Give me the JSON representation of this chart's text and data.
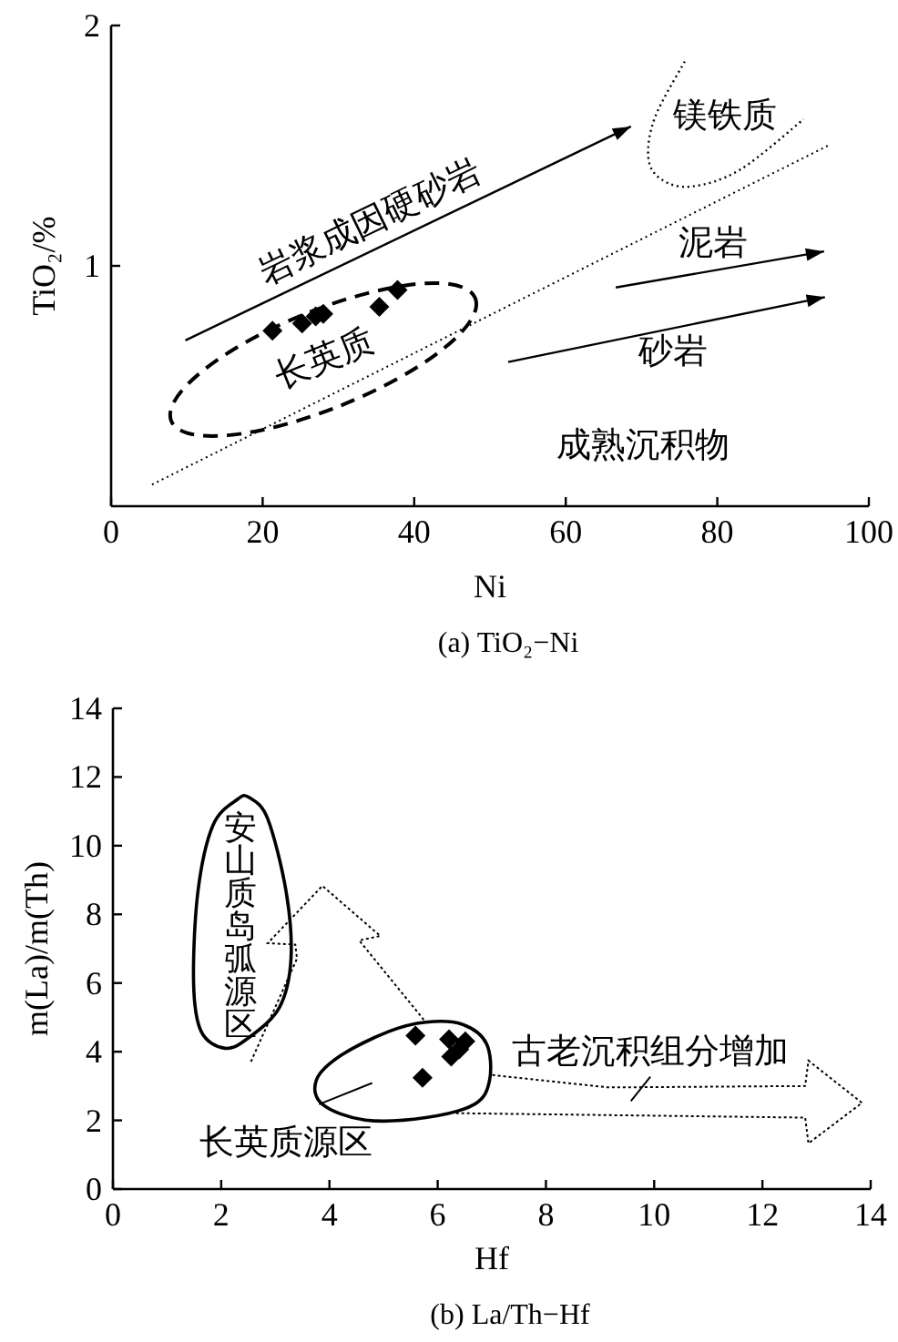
{
  "chart_data": [
    {
      "type": "scatter",
      "title": "(a) TiO₂−Ni",
      "xlabel": "Ni",
      "ylabel": "TiO₂/%",
      "series": [
        {
          "marker": "diamond",
          "color": "#000000",
          "x": [
            21.3,
            25.2,
            27.0,
            28.0,
            35.4,
            37.8
          ],
          "values": [
            0.73,
            0.76,
            0.79,
            0.8,
            0.83,
            0.9
          ]
        },
        {
          "type": "line",
          "color": "#000000",
          "line_style": "dotted",
          "x": [
            5.4,
            94.6
          ],
          "values": [
            0.09,
            1.5
          ]
        }
      ],
      "xlim": [
        0,
        100
      ],
      "ylim": [
        0,
        2
      ],
      "xticks": [
        0,
        20,
        40,
        60,
        80,
        100
      ],
      "yticks": [
        1,
        2
      ],
      "annotations": [
        "岩浆成因硬砂岩",
        "镁铁质",
        "泥岩",
        "砂岩",
        "长英质",
        "成熟沉积物"
      ]
    },
    {
      "type": "scatter",
      "title": "(b) La/Th−Hf",
      "xlabel": "Hf",
      "ylabel": "m(La)/m(Th)",
      "marker": "diamond",
      "series": [
        {
          "color": "#000000",
          "x": [
            5.59,
            5.72,
            6.21,
            6.51,
            6.4,
            6.25
          ],
          "values": [
            4.47,
            3.24,
            4.36,
            4.3,
            4.07,
            3.86
          ]
        }
      ],
      "xlim": [
        0,
        14
      ],
      "ylim": [
        0,
        14
      ],
      "xticks": [
        0,
        2,
        4,
        6,
        8,
        10,
        12,
        14
      ],
      "yticks": [
        0,
        2,
        4,
        6,
        8,
        10,
        12,
        14
      ],
      "annotations": [
        "安山质岛弧源区",
        "古老沉积组分增加",
        "长英质源区"
      ]
    }
  ]
}
